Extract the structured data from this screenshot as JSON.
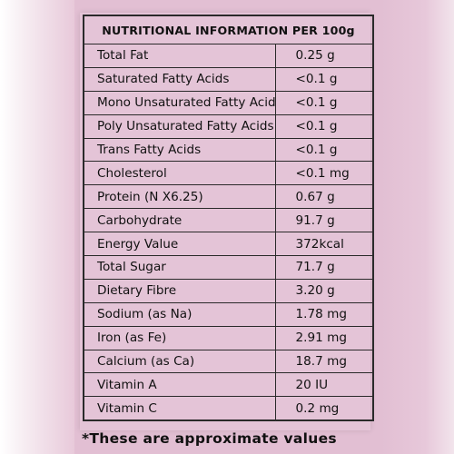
{
  "label": {
    "heading": "NUTRITIONAL INFORMATION PER 100g",
    "rows": [
      {
        "name": "Total Fat",
        "value": "0.25 g"
      },
      {
        "name": "Saturated Fatty Acids",
        "value": "<0.1 g"
      },
      {
        "name": "Mono Unsaturated Fatty Acids",
        "value": "<0.1 g"
      },
      {
        "name": "Poly Unsaturated Fatty Acids",
        "value": "<0.1 g"
      },
      {
        "name": "Trans Fatty Acids",
        "value": "<0.1 g"
      },
      {
        "name": "Cholesterol",
        "value": "<0.1 mg"
      },
      {
        "name": "Protein (N X6.25)",
        "value": "0.67 g"
      },
      {
        "name": "Carbohydrate",
        "value": "91.7 g"
      },
      {
        "name": "Energy Value",
        "value": "372kcal"
      },
      {
        "name": "Total Sugar",
        "value": "71.7 g"
      },
      {
        "name": "Dietary Fibre",
        "value": "3.20 g"
      },
      {
        "name": "Sodium (as Na)",
        "value": "1.78 mg"
      },
      {
        "name": "Iron (as Fe)",
        "value": "2.91 mg"
      },
      {
        "name": "Calcium (as Ca)",
        "value": "18.7 mg"
      },
      {
        "name": "Vitamin A",
        "value": "20 IU"
      },
      {
        "name": "Vitamin C",
        "value": "0.2 mg"
      }
    ],
    "footnote": "*These are approximate values"
  },
  "colors": {
    "background": "#e2bfd3",
    "border": "#2a2a2a",
    "text": "#111111"
  }
}
